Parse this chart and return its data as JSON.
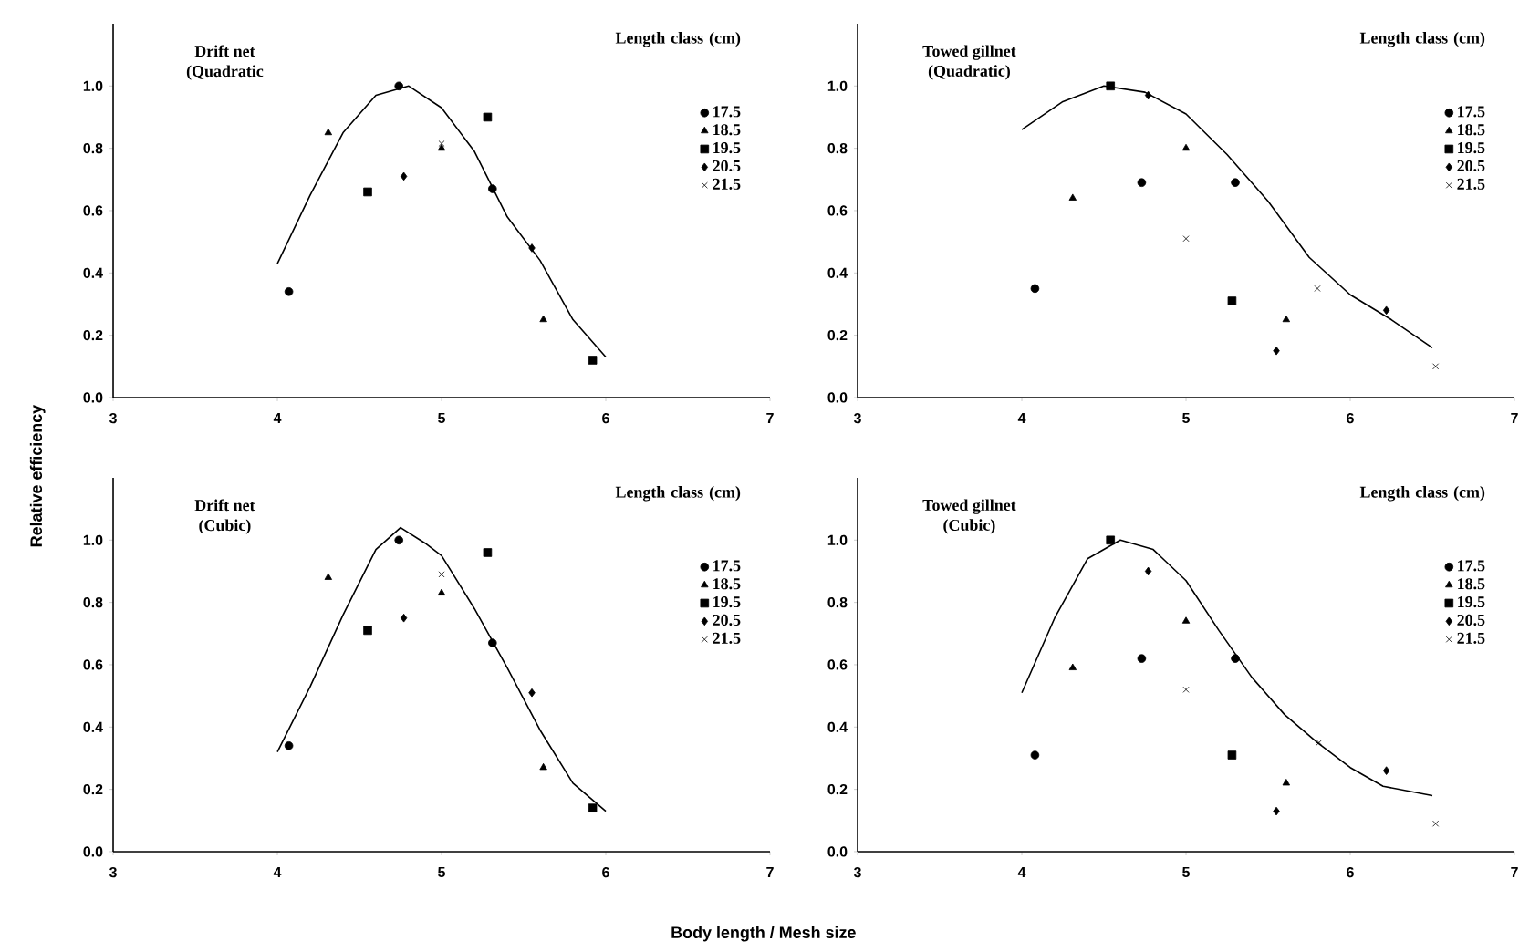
{
  "chart_data": [
    {
      "type": "scatter",
      "title": "Drift net",
      "subtitle": "(Quadratic",
      "legend_title": "Length class (cm)",
      "legend": "top right",
      "ylabel": "Relative efficiency",
      "xlim": [
        3,
        7
      ],
      "xticks": [
        3,
        4,
        5,
        6,
        7
      ],
      "ylim": [
        0,
        1.2
      ],
      "yticks": [
        {
          "value": 0,
          "label": "0.0"
        },
        {
          "value": 0.2,
          "label": "0.2"
        },
        {
          "value": 0.4,
          "label": "0.4"
        },
        {
          "value": 0.6,
          "label": "0.6"
        },
        {
          "value": 0.8,
          "label": "0.8"
        },
        {
          "value": 1,
          "label": "1.0"
        }
      ],
      "series": [
        {
          "name": "17.5",
          "marker": "circle",
          "color": "#000000",
          "x": [
            4.07,
            4.74,
            5.31
          ],
          "values": [
            0.34,
            1.0,
            0.67
          ]
        },
        {
          "name": "18.5",
          "marker": "triangle",
          "color": "#000000",
          "x": [
            4.31,
            5.0,
            5.62
          ],
          "values": [
            0.85,
            0.8,
            0.25
          ]
        },
        {
          "name": "19.5",
          "marker": "square",
          "color": "#000000",
          "x": [
            4.55,
            5.28,
            5.92
          ],
          "values": [
            0.66,
            0.9,
            0.12
          ]
        },
        {
          "name": "20.5",
          "marker": "diamond",
          "color": "#000000",
          "x": [
            4.77,
            5.55
          ],
          "values": [
            0.71,
            0.48
          ]
        },
        {
          "name": "21.5",
          "marker": "cross",
          "color": "#000000",
          "x": [
            5.0
          ],
          "values": [
            0.815
          ]
        },
        {
          "type": "line",
          "line_style": "solid",
          "color": "#000000",
          "x": [
            4.0,
            4.2,
            4.4,
            4.6,
            4.8,
            5.0,
            5.2,
            5.4,
            5.6,
            5.8,
            6.0
          ],
          "values": [
            0.43,
            0.65,
            0.85,
            0.97,
            1.0,
            0.93,
            0.79,
            0.58,
            0.44,
            0.25,
            0.13
          ]
        }
      ]
    },
    {
      "type": "scatter",
      "title": "Towed gillnet",
      "subtitle": "(Quadratic)",
      "legend_title": "Length class (cm)",
      "legend": "top right",
      "xlim": [
        3,
        7
      ],
      "xticks": [
        3,
        4,
        5,
        6,
        7
      ],
      "ylim": [
        0,
        1.2
      ],
      "yticks": [
        {
          "value": 0,
          "label": "0.0"
        },
        {
          "value": 0.2,
          "label": "0.2"
        },
        {
          "value": 0.4,
          "label": "0.4"
        },
        {
          "value": 0.6,
          "label": "0.6"
        },
        {
          "value": 0.8,
          "label": "0.8"
        },
        {
          "value": 1,
          "label": "1.0"
        }
      ],
      "series": [
        {
          "name": "17.5",
          "marker": "circle",
          "color": "#000000",
          "x": [
            4.08,
            4.73,
            5.3
          ],
          "values": [
            0.35,
            0.69,
            0.69
          ]
        },
        {
          "name": "18.5",
          "marker": "triangle",
          "color": "#000000",
          "x": [
            4.31,
            5.0,
            5.61
          ],
          "values": [
            0.64,
            0.8,
            0.25
          ]
        },
        {
          "name": "19.5",
          "marker": "square",
          "color": "#000000",
          "x": [
            4.54,
            5.28
          ],
          "values": [
            1.0,
            0.31
          ]
        },
        {
          "name": "20.5",
          "marker": "diamond",
          "color": "#000000",
          "x": [
            4.77,
            5.55,
            6.22
          ],
          "values": [
            0.97,
            0.15,
            0.28
          ]
        },
        {
          "name": "21.5",
          "marker": "cross",
          "color": "#000000",
          "x": [
            5.0,
            5.8,
            6.52
          ],
          "values": [
            0.51,
            0.35,
            0.1
          ]
        },
        {
          "type": "line",
          "line_style": "solid",
          "color": "#000000",
          "x": [
            4.0,
            4.25,
            4.5,
            4.75,
            5.0,
            5.25,
            5.5,
            5.75,
            6.0,
            6.25,
            6.5
          ],
          "values": [
            0.86,
            0.95,
            1.0,
            0.98,
            0.91,
            0.78,
            0.63,
            0.45,
            0.33,
            0.25,
            0.16
          ]
        }
      ]
    },
    {
      "type": "scatter",
      "title": "Drift net",
      "subtitle": "(Cubic)",
      "legend_title": "Length class (cm)",
      "legend": "top right",
      "xlabel": "Body length / Mesh size",
      "xlim": [
        3,
        7
      ],
      "xticks": [
        3,
        4,
        5,
        6,
        7
      ],
      "ylim": [
        0,
        1.2
      ],
      "yticks": [
        {
          "value": 0,
          "label": "0.0"
        },
        {
          "value": 0.2,
          "label": "0.2"
        },
        {
          "value": 0.4,
          "label": "0.4"
        },
        {
          "value": 0.6,
          "label": "0.6"
        },
        {
          "value": 0.8,
          "label": "0.8"
        },
        {
          "value": 1,
          "label": "1.0"
        }
      ],
      "series": [
        {
          "name": "17.5",
          "marker": "circle",
          "color": "#000000",
          "x": [
            4.07,
            4.74,
            5.31
          ],
          "values": [
            0.34,
            1.0,
            0.67
          ]
        },
        {
          "name": "18.5",
          "marker": "triangle",
          "color": "#000000",
          "x": [
            4.31,
            5.0,
            5.62
          ],
          "values": [
            0.88,
            0.83,
            0.27
          ]
        },
        {
          "name": "19.5",
          "marker": "square",
          "color": "#000000",
          "x": [
            4.55,
            5.28,
            5.92
          ],
          "values": [
            0.71,
            0.96,
            0.14
          ]
        },
        {
          "name": "20.5",
          "marker": "diamond",
          "color": "#000000",
          "x": [
            4.77,
            5.55
          ],
          "values": [
            0.75,
            0.51
          ]
        },
        {
          "name": "21.5",
          "marker": "cross",
          "color": "#000000",
          "x": [
            5.0
          ],
          "values": [
            0.89
          ]
        },
        {
          "type": "line",
          "line_style": "solid",
          "color": "#000000",
          "x": [
            4.0,
            4.2,
            4.4,
            4.6,
            4.75,
            4.9,
            5.0,
            5.2,
            5.4,
            5.6,
            5.8,
            6.0
          ],
          "values": [
            0.32,
            0.53,
            0.76,
            0.97,
            1.04,
            0.99,
            0.95,
            0.78,
            0.59,
            0.39,
            0.22,
            0.13
          ]
        }
      ]
    },
    {
      "type": "scatter",
      "title": "Towed gillnet",
      "subtitle": "(Cubic)",
      "legend_title": "Length class (cm)",
      "legend": "top right",
      "xlim": [
        3,
        7
      ],
      "xticks": [
        3,
        4,
        5,
        6,
        7
      ],
      "ylim": [
        0,
        1.2
      ],
      "yticks": [
        {
          "value": 0,
          "label": "0.0"
        },
        {
          "value": 0.2,
          "label": "0.2"
        },
        {
          "value": 0.4,
          "label": "0.4"
        },
        {
          "value": 0.6,
          "label": "0.6"
        },
        {
          "value": 0.8,
          "label": "0.8"
        },
        {
          "value": 1,
          "label": "1.0"
        }
      ],
      "series": [
        {
          "name": "17.5",
          "marker": "circle",
          "color": "#000000",
          "x": [
            4.08,
            4.73,
            5.3
          ],
          "values": [
            0.31,
            0.62,
            0.62
          ]
        },
        {
          "name": "18.5",
          "marker": "triangle",
          "color": "#000000",
          "x": [
            4.31,
            5.0,
            5.61
          ],
          "values": [
            0.59,
            0.74,
            0.22
          ]
        },
        {
          "name": "19.5",
          "marker": "square",
          "color": "#000000",
          "x": [
            4.54,
            5.28
          ],
          "values": [
            1.0,
            0.31
          ]
        },
        {
          "name": "20.5",
          "marker": "diamond",
          "color": "#000000",
          "x": [
            4.77,
            5.55,
            6.22
          ],
          "values": [
            0.9,
            0.13,
            0.26
          ]
        },
        {
          "name": "21.5",
          "marker": "cross",
          "color": "#000000",
          "x": [
            5.0,
            5.81,
            6.52
          ],
          "values": [
            0.52,
            0.35,
            0.09
          ]
        },
        {
          "type": "line",
          "line_style": "solid",
          "color": "#000000",
          "x": [
            4.0,
            4.2,
            4.4,
            4.6,
            4.8,
            5.0,
            5.2,
            5.4,
            5.6,
            5.8,
            6.0,
            6.2,
            6.5
          ],
          "values": [
            0.51,
            0.75,
            0.94,
            1.0,
            0.97,
            0.87,
            0.71,
            0.56,
            0.44,
            0.35,
            0.27,
            0.21,
            0.18
          ]
        }
      ]
    }
  ]
}
